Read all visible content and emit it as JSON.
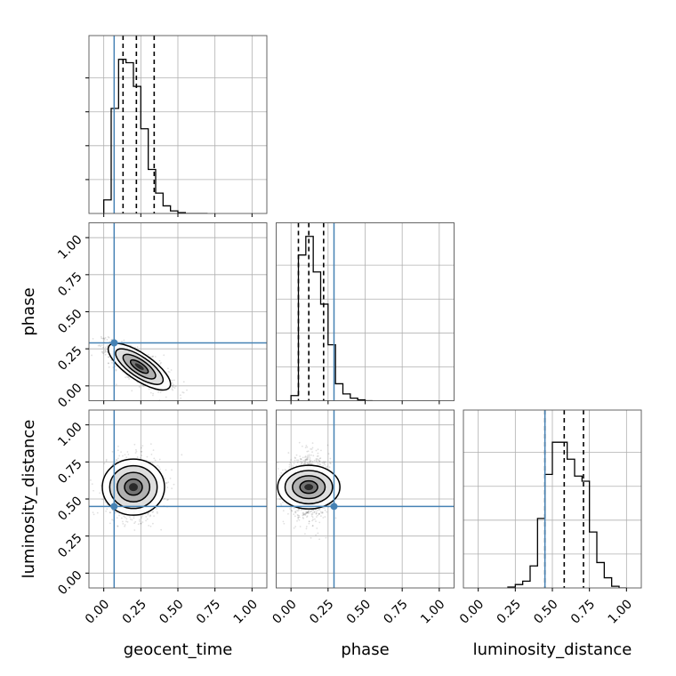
{
  "chart_data": {
    "type": "corner",
    "parameters": [
      "geocent_time",
      "phase",
      "luminosity_distance"
    ],
    "axis_range": [
      -0.1,
      1.1
    ],
    "tick_values": [
      0.0,
      0.25,
      0.5,
      0.75,
      1.0
    ],
    "tick_labels": [
      "0.00",
      "0.25",
      "0.50",
      "0.75",
      "1.00"
    ],
    "grid": true,
    "truth_color": "#4682b4",
    "line_color": "#000000",
    "truths": {
      "geocent_time": 0.07,
      "phase": 0.29,
      "luminosity_distance": 0.45
    },
    "quantiles": {
      "geocent_time": [
        0.13,
        0.22,
        0.34
      ],
      "phase": [
        0.05,
        0.12,
        0.22
      ],
      "luminosity_distance": [
        0.45,
        0.58,
        0.71
      ]
    },
    "histograms": {
      "geocent_time": {
        "bin_edges": [
          0.0,
          0.05,
          0.1,
          0.15,
          0.2,
          0.25,
          0.3,
          0.35,
          0.4,
          0.45,
          0.5,
          0.55,
          0.6,
          0.65,
          0.7
        ],
        "counts": [
          0.08,
          0.62,
          0.91,
          0.89,
          0.75,
          0.5,
          0.26,
          0.12,
          0.045,
          0.015,
          0.005,
          0.0,
          0.0,
          0.0
        ]
      },
      "phase": {
        "bin_edges": [
          0.0,
          0.05,
          0.1,
          0.15,
          0.2,
          0.25,
          0.3,
          0.35,
          0.4,
          0.45,
          0.5,
          0.55
        ],
        "counts": [
          0.03,
          0.86,
          0.97,
          0.76,
          0.57,
          0.33,
          0.1,
          0.04,
          0.015,
          0.005,
          0.0
        ]
      },
      "luminosity_distance": {
        "bin_edges": [
          0.2,
          0.25,
          0.3,
          0.35,
          0.4,
          0.45,
          0.5,
          0.55,
          0.6,
          0.65,
          0.7,
          0.75,
          0.8,
          0.85,
          0.9,
          0.95,
          1.0
        ],
        "counts": [
          0.005,
          0.02,
          0.04,
          0.13,
          0.41,
          0.67,
          0.86,
          0.86,
          0.76,
          0.66,
          0.63,
          0.33,
          0.15,
          0.06,
          0.01,
          0.0
        ]
      }
    },
    "joint_2d": [
      {
        "x": "geocent_time",
        "y": "phase",
        "mean": [
          0.24,
          0.13
        ],
        "sd": [
          0.1,
          0.075
        ],
        "corr": -0.75
      },
      {
        "x": "geocent_time",
        "y": "luminosity_distance",
        "mean": [
          0.2,
          0.58
        ],
        "sd": [
          0.09,
          0.1
        ],
        "corr": 0.0
      },
      {
        "x": "phase",
        "y": "luminosity_distance",
        "mean": [
          0.12,
          0.58
        ],
        "sd": [
          0.07,
          0.1
        ],
        "corr": 0.0
      }
    ]
  }
}
